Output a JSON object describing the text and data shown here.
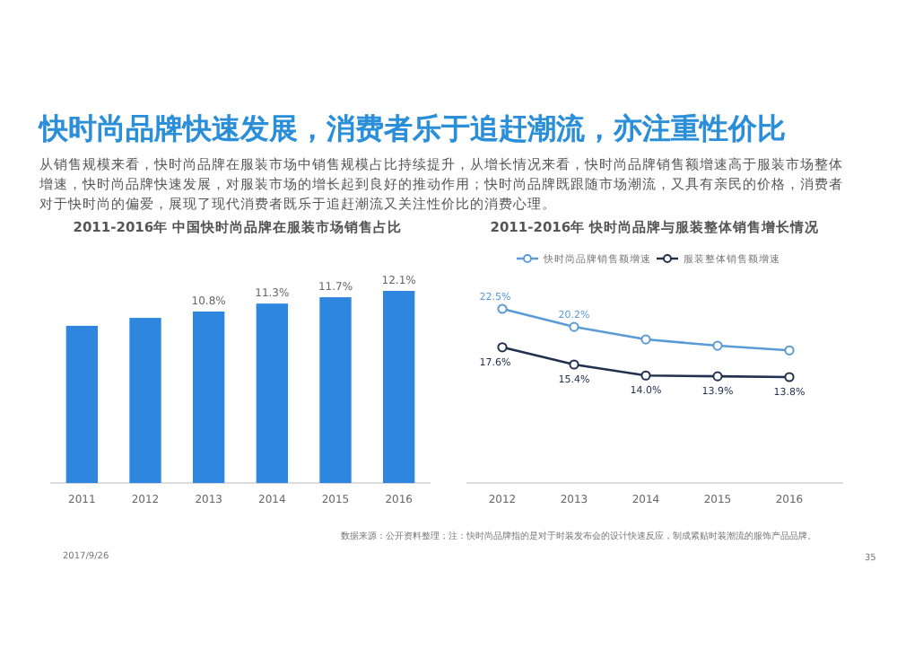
{
  "chart_data": [
    {
      "type": "other",
      "title": "快时尚品牌快速发展，消费者乐于追赶潮流，亦注重性价比",
      "annotations": [
        "从销售规模来看，快时尚品牌在服装市场中销售规模占比持续提升，从增长情况来看，快时尚品牌销售额增速高于服装市场整体增速，快时尚品牌快速发展，对服装市场的增长起到良好的推动作用；快时尚品牌既跟随市场潮流，又具有亲民的价格，消费者对于快时尚的偏爱，展现了现代消费者既乐于追赶潮流又关注性价比的消费心理。"
      ]
    },
    {
      "type": "bar",
      "title": "2011-2016年 中国快时尚品牌在服装市场销售占比",
      "categories": [
        "2011",
        "2012",
        "2013",
        "2014",
        "2015",
        "2016"
      ],
      "values": [
        9.9,
        10.4,
        10.8,
        11.3,
        11.7,
        12.1
      ],
      "value_labels": [
        null,
        null,
        "10.8%",
        "11.3%",
        "11.7%",
        "12.1%"
      ],
      "color": "#2e86de"
    },
    {
      "type": "line",
      "title": "2011-2016年 快时尚品牌与服装整体销售增长情况",
      "categories": [
        "2012",
        "2013",
        "2014",
        "2015",
        "2016"
      ],
      "series": [
        {
          "name": "快时尚品牌销售额增速",
          "color": "#5b9bd5",
          "values": [
            22.5,
            20.2,
            18.6,
            17.8,
            17.2
          ],
          "value_labels": [
            "22.5%",
            "20.2%",
            null,
            null,
            null
          ]
        },
        {
          "name": "服装整体销售额增速",
          "color": "#22304f",
          "values": [
            17.6,
            15.4,
            14.0,
            13.9,
            13.8
          ],
          "value_labels": [
            "17.6%",
            "15.4%",
            "14.0%",
            "13.9%",
            "13.8%"
          ]
        }
      ],
      "legend": "top",
      "marker": "circle",
      "annotations": [
        "数据来源：公开资料整理；注：快时尚品牌指的是对于时装发布会的设计快速反应，制成紧贴时装潮流的服饰产品品牌。",
        "2017/9/26",
        "35"
      ]
    }
  ]
}
